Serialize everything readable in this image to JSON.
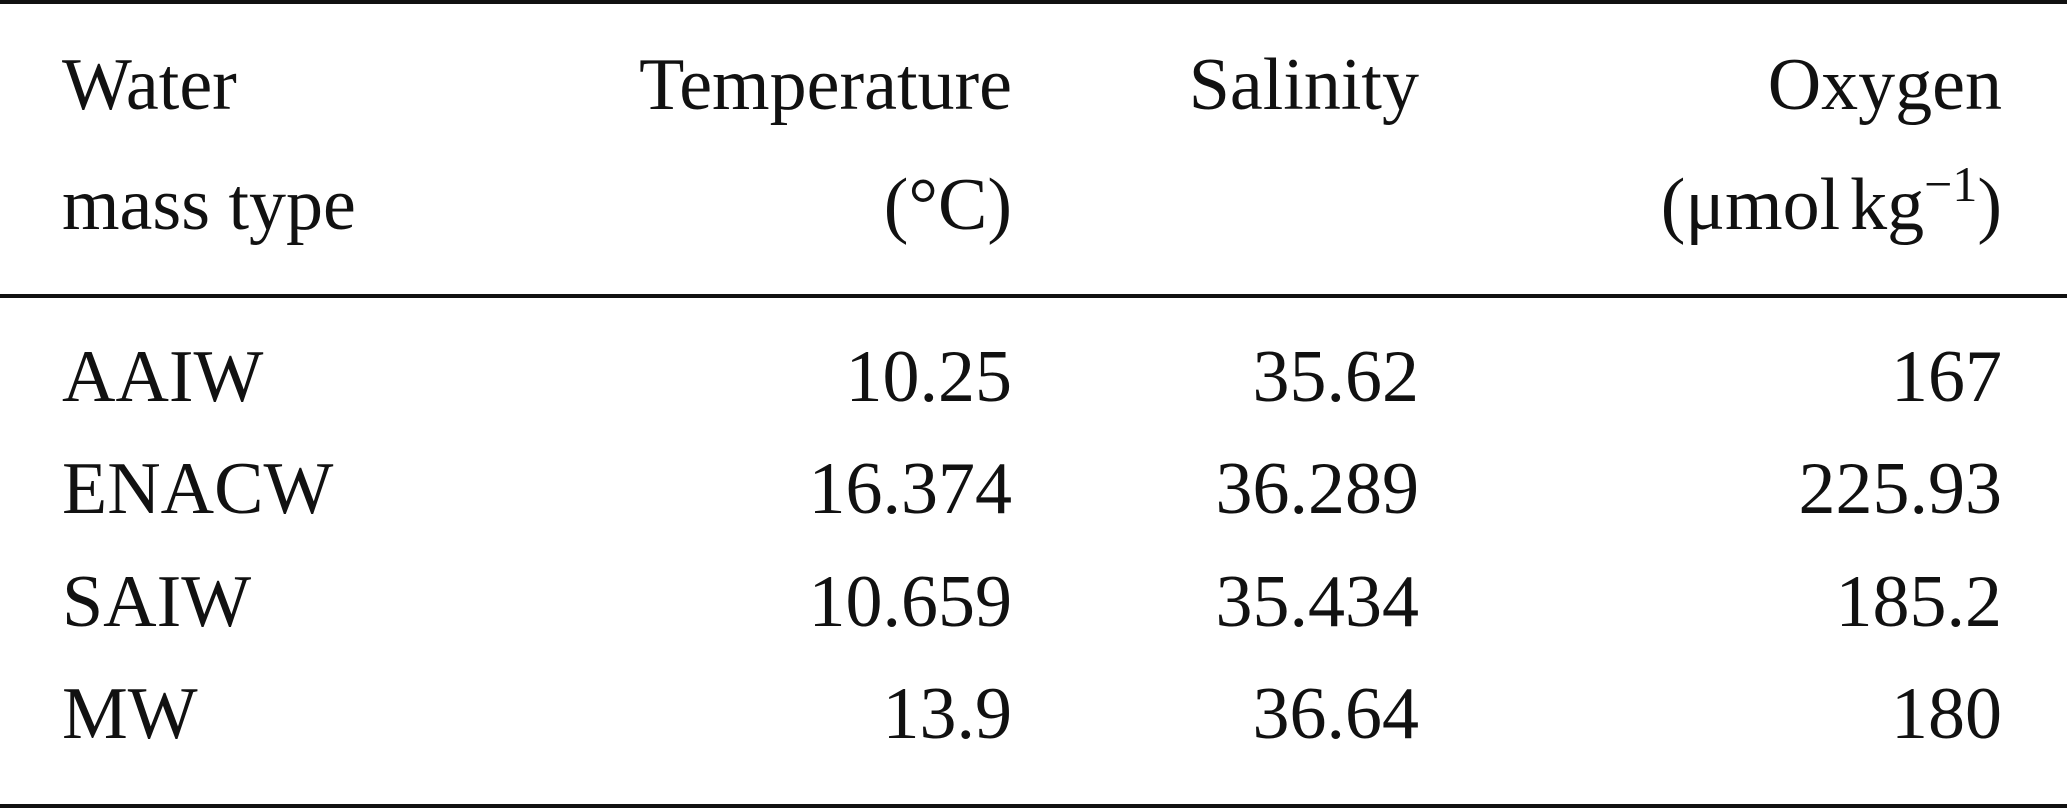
{
  "table": {
    "headers": {
      "water_mass": [
        "Water",
        "mass type"
      ],
      "temperature": [
        "Temperature",
        "(°C)"
      ],
      "salinity": [
        "Salinity"
      ],
      "oxygen": {
        "line1": "Oxygen",
        "line2_prefix": "(μmol",
        "line2_unit": "kg",
        "line2_exponent": "−1",
        "line2_suffix": ")"
      }
    },
    "rows": [
      {
        "water_mass": "AAIW",
        "temperature": "10.25",
        "salinity": "35.62",
        "oxygen": "167"
      },
      {
        "water_mass": "ENACW",
        "temperature": "16.374",
        "salinity": "36.289",
        "oxygen": "225.93"
      },
      {
        "water_mass": "SAIW",
        "temperature": "10.659",
        "salinity": "35.434",
        "oxygen": "185.2"
      },
      {
        "water_mass": "MW",
        "temperature": "13.9",
        "salinity": "36.64",
        "oxygen": "180"
      }
    ]
  }
}
